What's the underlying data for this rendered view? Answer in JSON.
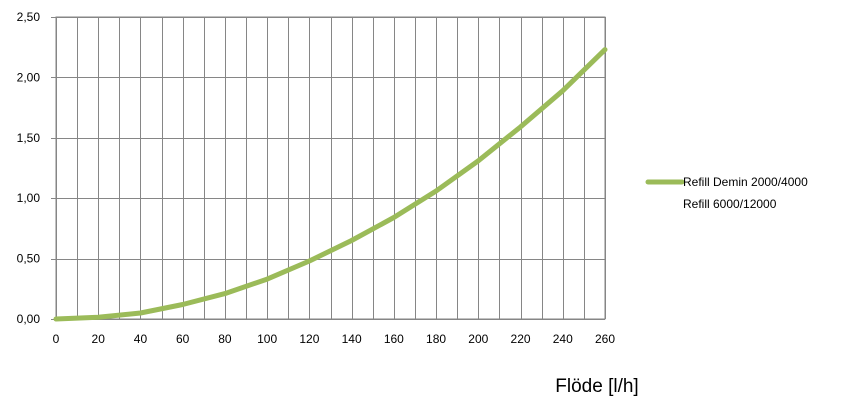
{
  "chart_data": {
    "type": "line",
    "title": "",
    "xlabel": "Flöde [l/h]",
    "ylabel": "",
    "xlim": [
      0,
      260
    ],
    "ylim": [
      0,
      2.5
    ],
    "xticks": [
      0,
      20,
      40,
      60,
      80,
      100,
      120,
      140,
      160,
      180,
      200,
      220,
      240,
      260
    ],
    "xtick_labels": [
      "0",
      "20",
      "40",
      "60",
      "80",
      "100",
      "120",
      "140",
      "160",
      "180",
      "200",
      "220",
      "240",
      "260"
    ],
    "yticks": [
      0,
      0.5,
      1.0,
      1.5,
      2.0,
      2.5
    ],
    "ytick_labels": [
      "0,00",
      "0,50",
      "1,00",
      "1,50",
      "2,00",
      "2,50"
    ],
    "grid": true,
    "legend_position": "right",
    "series": [
      {
        "name": "Refill Demin 2000/4000",
        "color": "#9bbb59",
        "x": [
          0,
          20,
          40,
          60,
          80,
          100,
          120,
          140,
          160,
          180,
          200,
          220,
          240,
          260
        ],
        "y": [
          0.0,
          0.015,
          0.05,
          0.12,
          0.21,
          0.33,
          0.48,
          0.65,
          0.84,
          1.06,
          1.31,
          1.59,
          1.89,
          2.23
        ]
      },
      {
        "name": "Refill 6000/12000",
        "color": "#4f81bd",
        "x": [],
        "y": []
      }
    ]
  }
}
